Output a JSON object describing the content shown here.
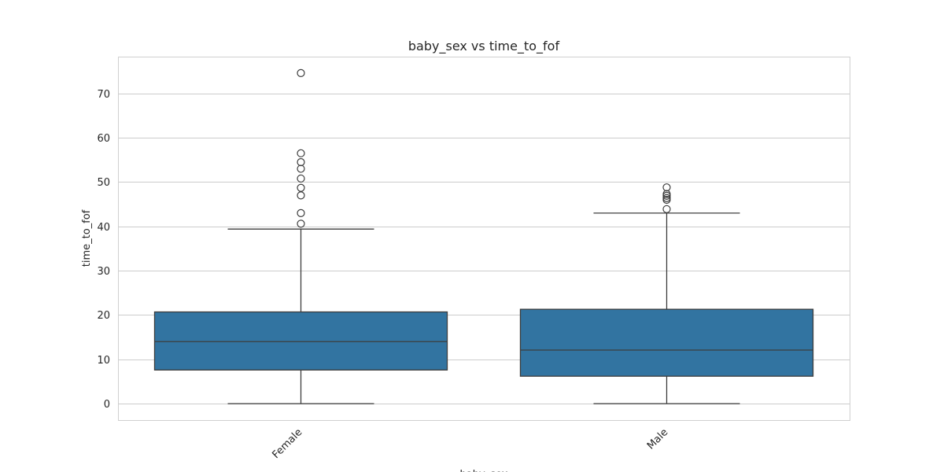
{
  "chart_data": {
    "type": "box",
    "title": "baby_sex vs time_to_fof",
    "xlabel": "baby_sex",
    "ylabel": "time_to_fof",
    "ylim": [
      -3.7,
      78.3
    ],
    "yticks": [
      0,
      10,
      20,
      30,
      40,
      50,
      60,
      70
    ],
    "grid": true,
    "box_color": "#3274a1",
    "categories": [
      "Female",
      "Male"
    ],
    "boxes": [
      {
        "category": "Female",
        "whisker_low": 0,
        "q1": 7.6,
        "median": 14.0,
        "q3": 20.7,
        "whisker_high": 39.4,
        "outliers": [
          40.6,
          43.0,
          47.0,
          48.7,
          50.8,
          53.0,
          54.5,
          56.5,
          74.6
        ]
      },
      {
        "category": "Male",
        "whisker_low": 0,
        "q1": 6.2,
        "median": 12.1,
        "q3": 21.3,
        "whisker_high": 43.0,
        "outliers": [
          43.9,
          46.0,
          46.4,
          46.9,
          47.3,
          48.8
        ]
      }
    ]
  }
}
